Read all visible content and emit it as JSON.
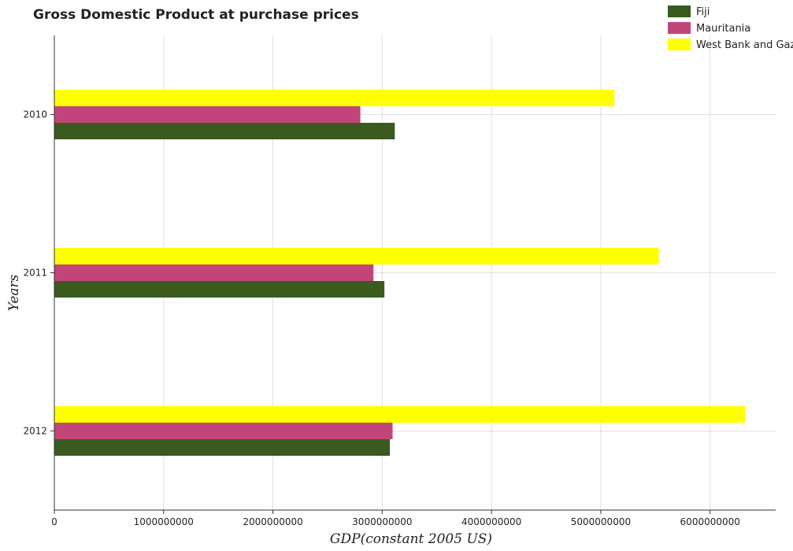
{
  "chart_data": {
    "type": "bar",
    "orientation": "horizontal",
    "title": "Gross Domestic Product at purchase prices",
    "xlabel": "GDP(constant 2005 US)",
    "ylabel": "Years",
    "categories": [
      "2010",
      "2011",
      "2012"
    ],
    "xlim": [
      0,
      6600000000
    ],
    "xticks": [
      0,
      1000000000,
      2000000000,
      3000000000,
      4000000000,
      5000000000,
      6000000000
    ],
    "xtick_labels": [
      "0",
      "1000000000",
      "2000000000",
      "3000000000",
      "4000000000",
      "5000000000",
      "6000000000"
    ],
    "grid": true,
    "legend_position": "top-right",
    "series": [
      {
        "name": "Fiji",
        "color": "#3a5a1f",
        "values": [
          3115000000,
          3020000000,
          3070000000
        ]
      },
      {
        "name": "Mauritania",
        "color": "#c2457a",
        "values": [
          2800000000,
          2920000000,
          3095000000
        ]
      },
      {
        "name": "West Bank and Gaza",
        "color": "#ffff00",
        "values": [
          5125000000,
          5530000000,
          6320000000
        ]
      }
    ]
  }
}
